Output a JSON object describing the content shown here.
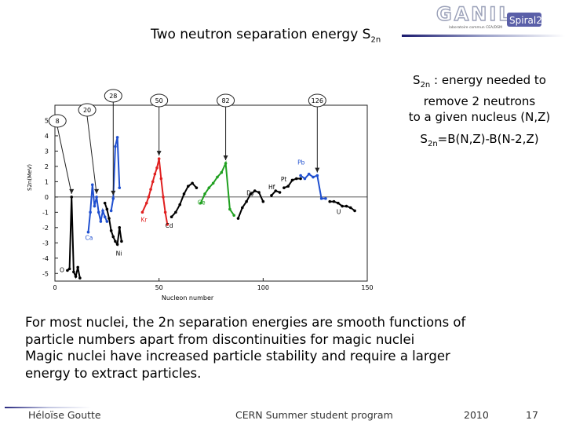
{
  "slide": {
    "title_main": "Two neutron separation energy S",
    "title_sub": "2n"
  },
  "logo": {
    "text": "GANIL",
    "tag": "Spiral2",
    "small_line": "laboratoire commun CEA/DSM"
  },
  "definition": {
    "sym": "S",
    "sym_sub": "2n",
    "line1_rest": " : energy needed to",
    "line2": "remove 2 neutrons",
    "line3": "to a  given nucleus (N,Z)"
  },
  "formula": {
    "sym": "S",
    "sym_sub": "2n",
    "rest": "=B(N,Z)-B(N-2,Z)"
  },
  "chart_data": {
    "type": "line",
    "xlabel": "Nucleon number",
    "ylabel": "S2n(MeV)",
    "xlim": [
      0,
      150
    ],
    "ylim": [
      -5.5,
      6
    ],
    "x_ticks": [
      "0",
      "50",
      "100",
      "150"
    ],
    "y_ticks": [
      "5",
      "4",
      "3",
      "2",
      "1",
      "0",
      "-1",
      "-2",
      "-3",
      "-4",
      "-5"
    ],
    "magic_numbers": [
      "8",
      "20",
      "28",
      "50",
      "82",
      "126"
    ],
    "magic_positions": [
      8,
      20,
      28,
      50,
      82,
      126
    ],
    "series": [
      {
        "name": "O",
        "color": "#000000",
        "x": [
          6,
          7,
          8,
          9,
          10,
          11,
          12
        ],
        "y": [
          -4.8,
          -4.7,
          0.0,
          -4.9,
          -5.2,
          -4.6,
          -5.3
        ]
      },
      {
        "name": "Ca",
        "color": "#1f4fcf",
        "x": [
          16,
          17,
          18,
          19,
          20,
          21,
          22,
          23,
          24,
          25
        ],
        "y": [
          -2.3,
          -1.0,
          0.8,
          -0.6,
          0.0,
          -1.0,
          -1.6,
          -0.9,
          -1.3,
          -1.6
        ]
      },
      {
        "name": "Ni",
        "color": "#000000",
        "x": [
          24,
          25,
          26,
          27,
          28,
          29,
          30,
          31,
          32
        ],
        "y": [
          -0.4,
          -0.8,
          -1.4,
          -2.2,
          -2.6,
          -2.9,
          -3.1,
          -2.0,
          -2.9
        ]
      },
      {
        "name": "",
        "color": "#1f4fcf",
        "x": [
          27,
          28,
          29,
          30,
          31
        ],
        "y": [
          -0.9,
          -0.1,
          3.3,
          3.9,
          0.6
        ]
      },
      {
        "name": "Kr",
        "color": "#e02020",
        "x": [
          42,
          44,
          45,
          46,
          47,
          48,
          49,
          50,
          51,
          52,
          53,
          54
        ],
        "y": [
          -1.0,
          -0.4,
          0.0,
          0.5,
          1.0,
          1.5,
          1.9,
          2.5,
          1.2,
          0.0,
          -1.0,
          -1.8
        ]
      },
      {
        "name": "Ce",
        "color": "#20a020",
        "x": [
          70,
          72,
          74,
          76,
          78,
          80,
          82,
          84,
          86
        ],
        "y": [
          -0.4,
          0.2,
          0.6,
          0.9,
          1.3,
          1.6,
          2.2,
          -0.8,
          -1.2
        ]
      },
      {
        "name": "Cd",
        "color": "#000000",
        "x": [
          56,
          58,
          60,
          62,
          64,
          66,
          68
        ],
        "y": [
          -1.3,
          -1.0,
          -0.5,
          0.2,
          0.7,
          0.9,
          0.6
        ]
      },
      {
        "name": "Dy",
        "color": "#000000",
        "x": [
          88,
          90,
          92,
          94,
          96,
          98,
          100
        ],
        "y": [
          -1.4,
          -0.7,
          -0.3,
          0.2,
          0.4,
          0.3,
          -0.3
        ]
      },
      {
        "name": "Hf",
        "color": "#000000",
        "x": [
          104,
          106,
          108
        ],
        "y": [
          0.1,
          0.4,
          0.3
        ]
      },
      {
        "name": "Pt",
        "color": "#000000",
        "x": [
          110,
          112,
          114,
          116,
          118
        ],
        "y": [
          0.6,
          0.7,
          1.1,
          1.2,
          1.2
        ]
      },
      {
        "name": "Pb",
        "color": "#1f4fcf",
        "x": [
          118,
          120,
          122,
          124,
          126,
          128,
          130
        ],
        "y": [
          1.4,
          1.2,
          1.5,
          1.3,
          1.4,
          -0.1,
          -0.1
        ]
      },
      {
        "name": "U",
        "color": "#000000",
        "x": [
          132,
          134,
          136,
          138,
          140,
          142,
          144
        ],
        "y": [
          -0.3,
          -0.3,
          -0.4,
          -0.6,
          -0.6,
          -0.7,
          -0.9
        ]
      }
    ]
  },
  "bottom_text": {
    "line1": "For most nuclei, the 2n separation energies are smooth functions of",
    "line2": "particle numbers apart from discontinuities for magic nuclei",
    "line3": "Magic nuclei have increased particle stability and require a larger",
    "line4": "energy to extract particles."
  },
  "footer": {
    "author": "Héloïse Goutte",
    "event": "CERN Summer student program",
    "year": "2010",
    "page": "17"
  },
  "colors": {
    "black": "#000000",
    "blue": "#1f4fcf",
    "red": "#e02020",
    "green": "#20a020",
    "accent": "#1a1a6e"
  }
}
